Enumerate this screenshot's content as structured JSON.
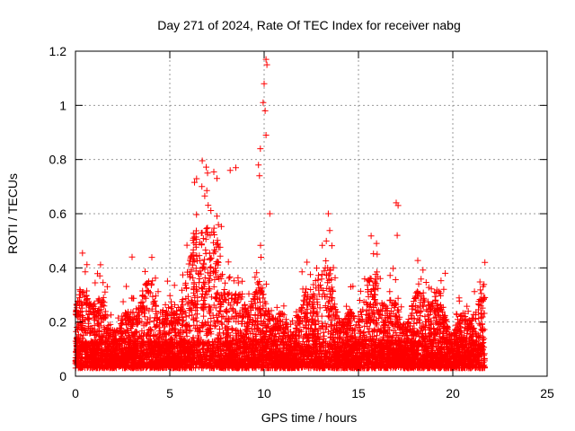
{
  "chart_data": {
    "type": "scatter",
    "title": "Day 271 of 2024, Rate Of TEC Index for receiver nabg",
    "xlabel": "GPS time / hours",
    "ylabel": "ROTI / TECUs",
    "xlim": [
      0,
      25
    ],
    "ylim": [
      0,
      1.2
    ],
    "xticks": [
      0,
      5,
      10,
      15,
      20,
      25
    ],
    "yticks": [
      0,
      0.2,
      0.4,
      0.6,
      0.8,
      1,
      1.2
    ],
    "xtick_labels": [
      "0",
      "5",
      "10",
      "15",
      "20",
      "25"
    ],
    "ytick_labels": [
      "0",
      "0.2",
      "0.4",
      "0.6",
      "0.8",
      "1",
      "1.2"
    ],
    "grid": true,
    "marker": "+",
    "series_color": "#ff0000",
    "series": [
      {
        "name": "ROTI",
        "x_range": [
          0,
          21.7
        ],
        "notable_points": [
          {
            "x": 10.1,
            "y": 1.17
          },
          {
            "x": 10.15,
            "y": 1.15
          },
          {
            "x": 10.0,
            "y": 1.08
          },
          {
            "x": 9.95,
            "y": 1.01
          },
          {
            "x": 10.05,
            "y": 0.98
          },
          {
            "x": 10.1,
            "y": 0.89
          },
          {
            "x": 9.8,
            "y": 0.84
          },
          {
            "x": 9.7,
            "y": 0.78
          },
          {
            "x": 9.75,
            "y": 0.74
          },
          {
            "x": 8.5,
            "y": 0.77
          },
          {
            "x": 8.2,
            "y": 0.76
          },
          {
            "x": 7.0,
            "y": 0.75
          },
          {
            "x": 7.5,
            "y": 0.73
          },
          {
            "x": 6.7,
            "y": 0.7
          },
          {
            "x": 17.0,
            "y": 0.64
          },
          {
            "x": 17.1,
            "y": 0.63
          },
          {
            "x": 17.05,
            "y": 0.52
          },
          {
            "x": 13.4,
            "y": 0.6
          },
          {
            "x": 10.3,
            "y": 0.6
          },
          {
            "x": 3.0,
            "y": 0.44
          },
          {
            "x": 21.7,
            "y": 0.42
          },
          {
            "x": 19.6,
            "y": 0.38
          }
        ]
      }
    ]
  }
}
